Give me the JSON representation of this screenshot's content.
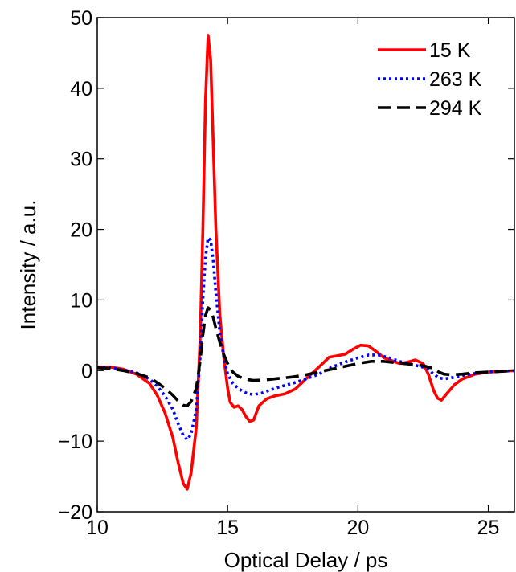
{
  "chart_data": {
    "type": "line",
    "title": "",
    "xlabel": "Optical Delay / ps",
    "ylabel": "Intensity / a.u.",
    "xlim": [
      10,
      26
    ],
    "ylim": [
      -20,
      50
    ],
    "xticks": [
      10,
      15,
      20,
      25
    ],
    "yticks": [
      -20,
      -10,
      0,
      10,
      20,
      30,
      40,
      50
    ],
    "xtick_labels": [
      "10",
      "15",
      "20",
      "25"
    ],
    "ytick_labels": [
      "−20",
      "−10",
      "0",
      "10",
      "20",
      "30",
      "40",
      "50"
    ],
    "grid": false,
    "legend_position": "top-right",
    "series": [
      {
        "name": "15 K",
        "color": "#ff0000",
        "style": "solid",
        "x": [
          10,
          10.5,
          11,
          11.5,
          12,
          12.3,
          12.6,
          12.9,
          13.1,
          13.3,
          13.45,
          13.6,
          13.8,
          13.95,
          14.05,
          14.15,
          14.25,
          14.35,
          14.45,
          14.55,
          14.7,
          14.85,
          15.0,
          15.1,
          15.25,
          15.4,
          15.55,
          15.7,
          15.85,
          16.0,
          16.2,
          16.5,
          16.8,
          17.2,
          17.6,
          18.0,
          18.5,
          18.9,
          19.2,
          19.5,
          19.8,
          20.1,
          20.4,
          20.7,
          21.0,
          21.3,
          21.6,
          21.9,
          22.2,
          22.5,
          22.7,
          22.9,
          23.05,
          23.2,
          23.4,
          23.7,
          24.0,
          24.5,
          25.0,
          25.5,
          26.0
        ],
        "y": [
          0.5,
          0.5,
          0.2,
          -0.5,
          -1.8,
          -3.5,
          -6,
          -9.5,
          -13,
          -16,
          -16.8,
          -14.5,
          -8,
          5,
          20,
          38,
          47.5,
          44,
          32,
          20,
          8,
          2,
          -2.5,
          -4.5,
          -5.2,
          -5.0,
          -5.5,
          -6.5,
          -7.2,
          -7.0,
          -5.0,
          -4.0,
          -3.6,
          -3.3,
          -2.6,
          -1.2,
          0.5,
          1.9,
          2.1,
          2.3,
          3.0,
          3.6,
          3.5,
          2.7,
          1.8,
          1.4,
          1.0,
          1.2,
          1.5,
          1.0,
          -0.5,
          -2.8,
          -3.9,
          -4.2,
          -3.3,
          -2.0,
          -1.2,
          -0.5,
          -0.2,
          -0.1,
          0.0
        ]
      },
      {
        "name": "263 K",
        "color": "#0000ff",
        "style": "dotted",
        "x": [
          10,
          10.5,
          11,
          11.5,
          12,
          12.3,
          12.6,
          12.9,
          13.1,
          13.3,
          13.45,
          13.6,
          13.8,
          13.95,
          14.05,
          14.15,
          14.25,
          14.35,
          14.45,
          14.55,
          14.7,
          14.85,
          15.0,
          15.2,
          15.4,
          15.6,
          15.8,
          16.0,
          16.3,
          16.6,
          17.0,
          17.5,
          18.0,
          18.5,
          19.0,
          19.5,
          20.0,
          20.4,
          20.8,
          21.2,
          21.6,
          22.0,
          22.4,
          22.7,
          22.9,
          23.1,
          23.3,
          23.6,
          24.0,
          24.5,
          25.0,
          25.5,
          26.0
        ],
        "y": [
          0.5,
          0.4,
          0.1,
          -0.3,
          -1.2,
          -2.2,
          -3.6,
          -5.5,
          -7.5,
          -9.2,
          -9.8,
          -9.0,
          -5.5,
          2.0,
          10.0,
          16.0,
          18.8,
          18.5,
          15.5,
          11.0,
          5.5,
          2.0,
          -0.5,
          -1.8,
          -2.5,
          -3.0,
          -3.3,
          -3.4,
          -3.2,
          -2.8,
          -2.3,
          -1.8,
          -1.2,
          -0.5,
          0.5,
          1.2,
          1.8,
          2.2,
          2.2,
          1.8,
          1.3,
          0.9,
          0.6,
          0.2,
          -0.5,
          -1.0,
          -1.2,
          -1.0,
          -0.7,
          -0.4,
          -0.2,
          -0.1,
          0.0
        ]
      },
      {
        "name": "294 K",
        "color": "#000000",
        "style": "dashed",
        "x": [
          10,
          10.5,
          11,
          11.5,
          12,
          12.3,
          12.6,
          12.9,
          13.1,
          13.3,
          13.45,
          13.6,
          13.8,
          13.95,
          14.05,
          14.15,
          14.25,
          14.35,
          14.45,
          14.55,
          14.7,
          14.85,
          15.0,
          15.2,
          15.4,
          15.6,
          15.8,
          16.0,
          16.5,
          17.0,
          17.5,
          18.0,
          18.5,
          19.0,
          19.5,
          20.0,
          20.5,
          21.0,
          21.5,
          22.0,
          22.5,
          22.9,
          23.1,
          23.3,
          23.6,
          24.0,
          24.5,
          25.0,
          25.5,
          26.0
        ],
        "y": [
          0.4,
          0.3,
          0.0,
          -0.4,
          -1.0,
          -1.7,
          -2.5,
          -3.5,
          -4.3,
          -4.9,
          -5.0,
          -4.4,
          -2.5,
          1.5,
          5.0,
          7.8,
          8.9,
          8.6,
          7.5,
          6.0,
          4.0,
          2.3,
          1.0,
          -0.2,
          -0.8,
          -1.1,
          -1.3,
          -1.4,
          -1.3,
          -1.1,
          -0.9,
          -0.6,
          -0.2,
          0.2,
          0.6,
          1.0,
          1.3,
          1.3,
          1.1,
          0.9,
          0.7,
          0.3,
          -0.2,
          -0.5,
          -0.6,
          -0.5,
          -0.3,
          -0.2,
          -0.1,
          0.0
        ]
      }
    ]
  }
}
